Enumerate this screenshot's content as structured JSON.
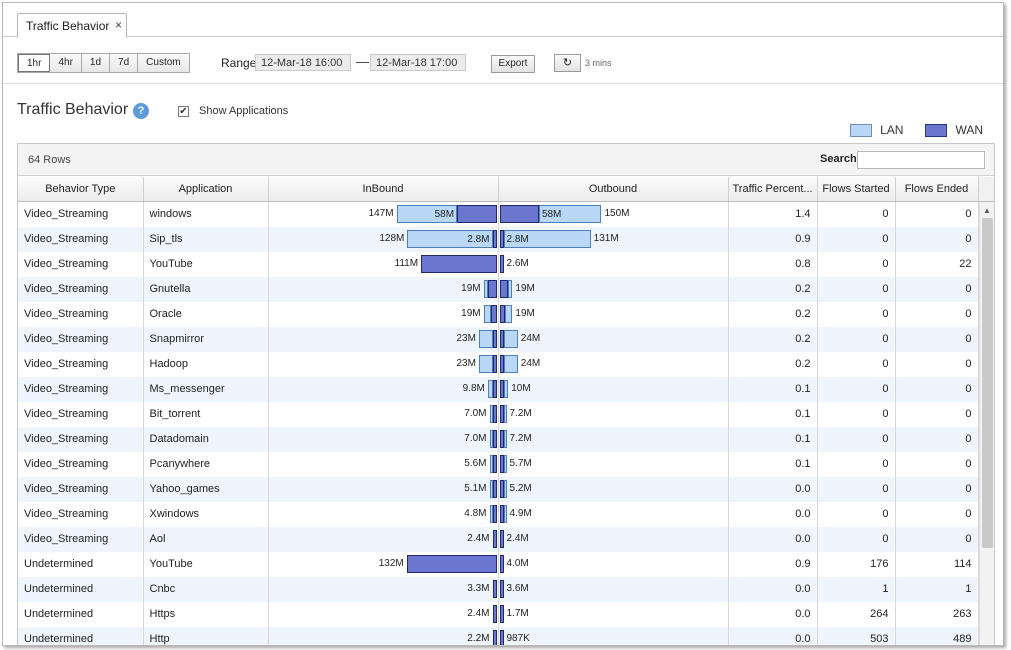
{
  "tab": {
    "title": "Traffic Behavior",
    "close_glyph": "×"
  },
  "toolbar": {
    "ranges": [
      "1hr",
      "4hr",
      "1d",
      "7d",
      "Custom"
    ],
    "active_range": "1hr",
    "range_label": "Range",
    "start": "12-Mar-18 16:00",
    "separator": "—",
    "end": "12-Mar-18 17:00",
    "export_label": "Export",
    "refresh_glyph": "↻",
    "refresh_interval": "3 mins"
  },
  "header": {
    "title": "Traffic Behavior",
    "help_glyph": "?",
    "show_applications_label": "Show Applications",
    "show_applications_checked": true
  },
  "legend": {
    "lan": "LAN",
    "wan": "WAN",
    "lan_color": "#b9d8f7",
    "wan_color": "#6b77cf"
  },
  "grid": {
    "rows_label": "64 Rows",
    "search_label": "Search",
    "search_value": "",
    "columns": [
      "Behavior Type",
      "Application",
      "InBound",
      "Outbound",
      "Traffic Percent...",
      "Flows Started",
      "Flows Ended"
    ],
    "rows": [
      {
        "type": "Video_Streaming",
        "app": "windows",
        "in_total": "147M",
        "in_lan": 89,
        "in_wan": 58,
        "in_seg": "58M",
        "out_total": "150M",
        "out_wan": 58,
        "out_lan": 92,
        "out_seg": "58M",
        "pct": "1.4",
        "started": "0",
        "ended": "0"
      },
      {
        "type": "Video_Streaming",
        "app": "Sip_tls",
        "in_total": "128M",
        "in_lan": 125.2,
        "in_wan": 2.8,
        "in_seg": "2.8M",
        "out_total": "131M",
        "out_wan": 2.8,
        "out_lan": 128.2,
        "out_seg": "2.8M",
        "pct": "0.9",
        "started": "0",
        "ended": "0"
      },
      {
        "type": "Video_Streaming",
        "app": "YouTube",
        "in_total": "111M",
        "in_lan": 0,
        "in_wan": 111,
        "in_seg": "",
        "out_total": "2.6M",
        "out_wan": 2.6,
        "out_lan": 0,
        "out_seg": "",
        "pct": "0.8",
        "started": "0",
        "ended": "22"
      },
      {
        "type": "Video_Streaming",
        "app": "Gnutella",
        "in_total": "19M",
        "in_lan": 6,
        "in_wan": 13,
        "in_seg": "",
        "out_total": "19M",
        "out_wan": 13,
        "out_lan": 6,
        "out_seg": "",
        "pct": "0.2",
        "started": "0",
        "ended": "0"
      },
      {
        "type": "Video_Streaming",
        "app": "Oracle",
        "in_total": "19M",
        "in_lan": 11,
        "in_wan": 8,
        "in_seg": "",
        "out_total": "19M",
        "out_wan": 8,
        "out_lan": 11,
        "out_seg": "",
        "pct": "0.2",
        "started": "0",
        "ended": "0"
      },
      {
        "type": "Video_Streaming",
        "app": "Snapmirror",
        "in_total": "23M",
        "in_lan": 20,
        "in_wan": 3,
        "in_seg": "",
        "out_total": "24M",
        "out_wan": 3,
        "out_lan": 21,
        "out_seg": "",
        "pct": "0.2",
        "started": "0",
        "ended": "0"
      },
      {
        "type": "Video_Streaming",
        "app": "Hadoop",
        "in_total": "23M",
        "in_lan": 20,
        "in_wan": 3,
        "in_seg": "",
        "out_total": "24M",
        "out_wan": 3,
        "out_lan": 21,
        "out_seg": "",
        "pct": "0.2",
        "started": "0",
        "ended": "0"
      },
      {
        "type": "Video_Streaming",
        "app": "Ms_messenger",
        "in_total": "9.8M",
        "in_lan": 6.8,
        "in_wan": 3,
        "in_seg": "",
        "out_total": "10M",
        "out_wan": 3,
        "out_lan": 7,
        "out_seg": "",
        "pct": "0.1",
        "started": "0",
        "ended": "0"
      },
      {
        "type": "Video_Streaming",
        "app": "Bit_torrent",
        "in_total": "7.0M",
        "in_lan": 4,
        "in_wan": 3,
        "in_seg": "",
        "out_total": "7.2M",
        "out_wan": 3,
        "out_lan": 4.2,
        "out_seg": "",
        "pct": "0.1",
        "started": "0",
        "ended": "0"
      },
      {
        "type": "Video_Streaming",
        "app": "Datadomain",
        "in_total": "7.0M",
        "in_lan": 4,
        "in_wan": 3,
        "in_seg": "",
        "out_total": "7.2M",
        "out_wan": 3,
        "out_lan": 4.2,
        "out_seg": "",
        "pct": "0.1",
        "started": "0",
        "ended": "0"
      },
      {
        "type": "Video_Streaming",
        "app": "Pcanywhere",
        "in_total": "5.6M",
        "in_lan": 2.6,
        "in_wan": 3,
        "in_seg": "",
        "out_total": "5.7M",
        "out_wan": 3,
        "out_lan": 2.7,
        "out_seg": "",
        "pct": "0.1",
        "started": "0",
        "ended": "0"
      },
      {
        "type": "Video_Streaming",
        "app": "Yahoo_games",
        "in_total": "5.1M",
        "in_lan": 2.1,
        "in_wan": 3,
        "in_seg": "",
        "out_total": "5.2M",
        "out_wan": 3,
        "out_lan": 2.2,
        "out_seg": "",
        "pct": "0.0",
        "started": "0",
        "ended": "0"
      },
      {
        "type": "Video_Streaming",
        "app": "Xwindows",
        "in_total": "4.8M",
        "in_lan": 1.8,
        "in_wan": 3,
        "in_seg": "",
        "out_total": "4.9M",
        "out_wan": 3,
        "out_lan": 1.9,
        "out_seg": "",
        "pct": "0.0",
        "started": "0",
        "ended": "0"
      },
      {
        "type": "Video_Streaming",
        "app": "Aol",
        "in_total": "2.4M",
        "in_lan": 0,
        "in_wan": 2.4,
        "in_seg": "",
        "out_total": "2.4M",
        "out_wan": 2.4,
        "out_lan": 0,
        "out_seg": "",
        "pct": "0.0",
        "started": "0",
        "ended": "0"
      },
      {
        "type": "Undetermined",
        "app": "YouTube",
        "in_total": "132M",
        "in_lan": 0,
        "in_wan": 132,
        "in_seg": "",
        "out_total": "4.0M",
        "out_wan": 4,
        "out_lan": 0,
        "out_seg": "",
        "pct": "0.9",
        "started": "176",
        "ended": "114"
      },
      {
        "type": "Undetermined",
        "app": "Cnbc",
        "in_total": "3.3M",
        "in_lan": 0,
        "in_wan": 3.3,
        "in_seg": "",
        "out_total": "3.6M",
        "out_wan": 3.6,
        "out_lan": 0,
        "out_seg": "",
        "pct": "0.0",
        "started": "1",
        "ended": "1"
      },
      {
        "type": "Undetermined",
        "app": "Https",
        "in_total": "2.4M",
        "in_lan": 0,
        "in_wan": 2.4,
        "in_seg": "",
        "out_total": "1.7M",
        "out_wan": 1.7,
        "out_lan": 0,
        "out_seg": "",
        "pct": "0.0",
        "started": "264",
        "ended": "263"
      },
      {
        "type": "Undetermined",
        "app": "Http",
        "in_total": "2.2M",
        "in_lan": 0,
        "in_wan": 2.2,
        "in_seg": "",
        "out_total": "987K",
        "out_wan": 0.987,
        "out_lan": 0,
        "out_seg": "",
        "pct": "0.0",
        "started": "503",
        "ended": "489"
      }
    ]
  }
}
